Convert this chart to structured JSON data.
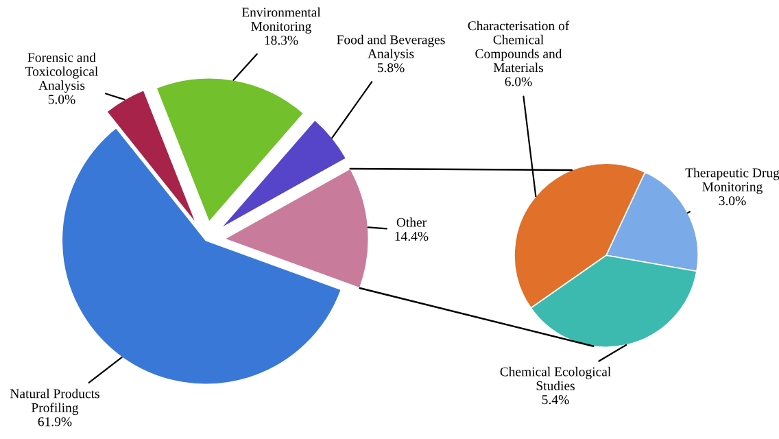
{
  "chart_data": [
    {
      "type": "pie",
      "categories": [
        "Other",
        "Food and Beverages\nAnalysis",
        "Environmental\nMonitoring",
        "Forensic and\nToxicological\nAnalysis",
        "Natural Products\nProfiling"
      ],
      "values": [
        14.4,
        5.8,
        18.3,
        5.0,
        61.9
      ],
      "value_labels": [
        "14.4%",
        "5.8%",
        "18.3%",
        "5.0%",
        "61.9%"
      ],
      "colors": [
        "#c97b9c",
        "#5645c8",
        "#72c02c",
        "#a8234a",
        "#3a78d8"
      ]
    },
    {
      "type": "pie",
      "categories": [
        "Therapeutic Drug\nMonitoring",
        "Characterisation of\nChemical\nCompounds and\nMaterials",
        "Chemical Ecological\nStudies"
      ],
      "values": [
        3.0,
        6.0,
        5.4
      ],
      "value_labels": [
        "3.0%",
        "6.0%",
        "5.4%"
      ],
      "colors": [
        "#7aabe8",
        "#e0702a",
        "#3dbab0"
      ]
    }
  ]
}
